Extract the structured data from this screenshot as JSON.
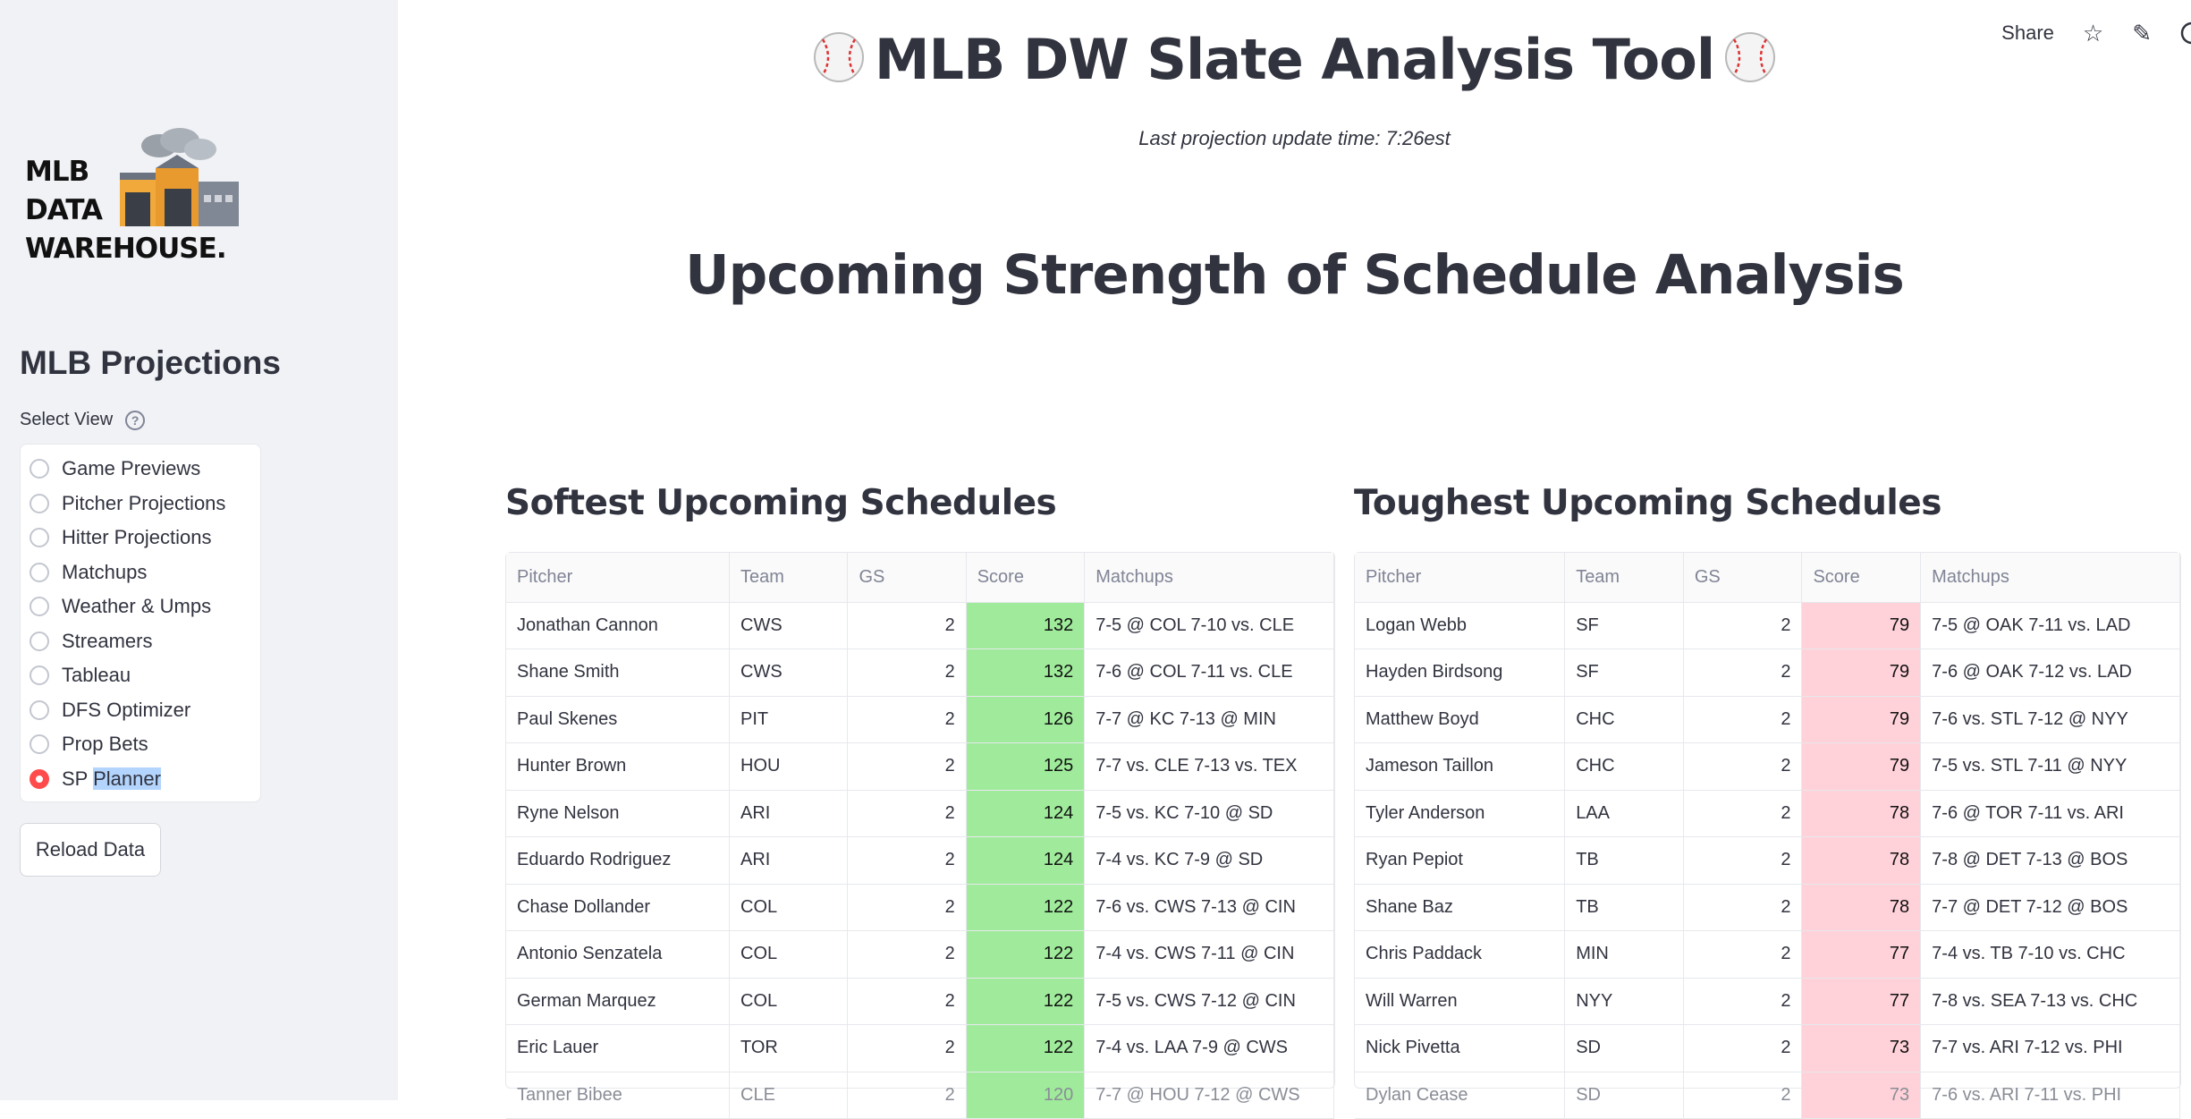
{
  "toolbar": {
    "share_label": "Share",
    "star_icon": "☆",
    "edit_icon": "✎"
  },
  "sidebar": {
    "logo": {
      "line1": "MLB",
      "line2": "DATA",
      "line3": "WAREHOUSE."
    },
    "title": "MLB Projections",
    "select_label": "Select View",
    "help_glyph": "?",
    "options": [
      {
        "label": "Game Previews"
      },
      {
        "label": "Pitcher Projections"
      },
      {
        "label": "Hitter Projections"
      },
      {
        "label": "Matchups"
      },
      {
        "label": "Weather & Umps"
      },
      {
        "label": "Streamers"
      },
      {
        "label": "Tableau"
      },
      {
        "label": "DFS Optimizer"
      },
      {
        "label": "Prop Bets"
      },
      {
        "label_a": "SP ",
        "label_b": "Planner",
        "selected": true
      }
    ],
    "reload_label": "Reload Data"
  },
  "main": {
    "title": "MLB DW Slate Analysis Tool",
    "subtitle": "Last projection update time: 7:26est",
    "section_title": "Upcoming Strength of Schedule Analysis",
    "columns": [
      "Pitcher",
      "Team",
      "GS",
      "Score",
      "Matchups"
    ],
    "softest": {
      "heading": "Softest Upcoming Schedules",
      "rows": [
        [
          "Jonathan Cannon",
          "CWS",
          "2",
          "132",
          "7-5 @ COL  7-10 vs. CLE"
        ],
        [
          "Shane Smith",
          "CWS",
          "2",
          "132",
          "7-6 @ COL  7-11 vs. CLE"
        ],
        [
          "Paul Skenes",
          "PIT",
          "2",
          "126",
          "7-7 @ KC  7-13 @ MIN"
        ],
        [
          "Hunter Brown",
          "HOU",
          "2",
          "125",
          "7-7 vs. CLE  7-13 vs. TEX"
        ],
        [
          "Ryne Nelson",
          "ARI",
          "2",
          "124",
          "7-5 vs. KC  7-10 @ SD"
        ],
        [
          "Eduardo Rodriguez",
          "ARI",
          "2",
          "124",
          "7-4 vs. KC  7-9 @ SD"
        ],
        [
          "Chase Dollander",
          "COL",
          "2",
          "122",
          "7-6 vs. CWS  7-13 @ CIN"
        ],
        [
          "Antonio Senzatela",
          "COL",
          "2",
          "122",
          "7-4 vs. CWS  7-11 @ CIN"
        ],
        [
          "German Marquez",
          "COL",
          "2",
          "122",
          "7-5 vs. CWS  7-12 @ CIN"
        ],
        [
          "Eric Lauer",
          "TOR",
          "2",
          "122",
          "7-4 vs. LAA  7-9 @ CWS"
        ],
        [
          "Tanner Bibee",
          "CLE",
          "2",
          "120",
          "7-7 @ HOU  7-12 @ CWS"
        ]
      ]
    },
    "toughest": {
      "heading": "Toughest Upcoming Schedules",
      "rows": [
        [
          "Logan Webb",
          "SF",
          "2",
          "79",
          "7-5 @ OAK  7-11 vs. LAD"
        ],
        [
          "Hayden Birdsong",
          "SF",
          "2",
          "79",
          "7-6 @ OAK  7-12 vs. LAD"
        ],
        [
          "Matthew Boyd",
          "CHC",
          "2",
          "79",
          "7-6 vs. STL  7-12 @ NYY"
        ],
        [
          "Jameson Taillon",
          "CHC",
          "2",
          "79",
          "7-5 vs. STL  7-11 @ NYY"
        ],
        [
          "Tyler Anderson",
          "LAA",
          "2",
          "78",
          "7-6 @ TOR  7-11 vs. ARI"
        ],
        [
          "Ryan Pepiot",
          "TB",
          "2",
          "78",
          "7-8 @ DET  7-13 @ BOS"
        ],
        [
          "Shane Baz",
          "TB",
          "2",
          "78",
          "7-7 @ DET  7-12 @ BOS"
        ],
        [
          "Chris Paddack",
          "MIN",
          "2",
          "77",
          "7-4 vs. TB  7-10 vs. CHC"
        ],
        [
          "Will Warren",
          "NYY",
          "2",
          "77",
          "7-8 vs. SEA  7-13 vs. CHC"
        ],
        [
          "Nick Pivetta",
          "SD",
          "2",
          "73",
          "7-7 vs. ARI  7-12 vs. PHI"
        ],
        [
          "Dylan Cease",
          "SD",
          "2",
          "73",
          "7-6 vs. ARI  7-11 vs. PHI"
        ]
      ]
    }
  }
}
